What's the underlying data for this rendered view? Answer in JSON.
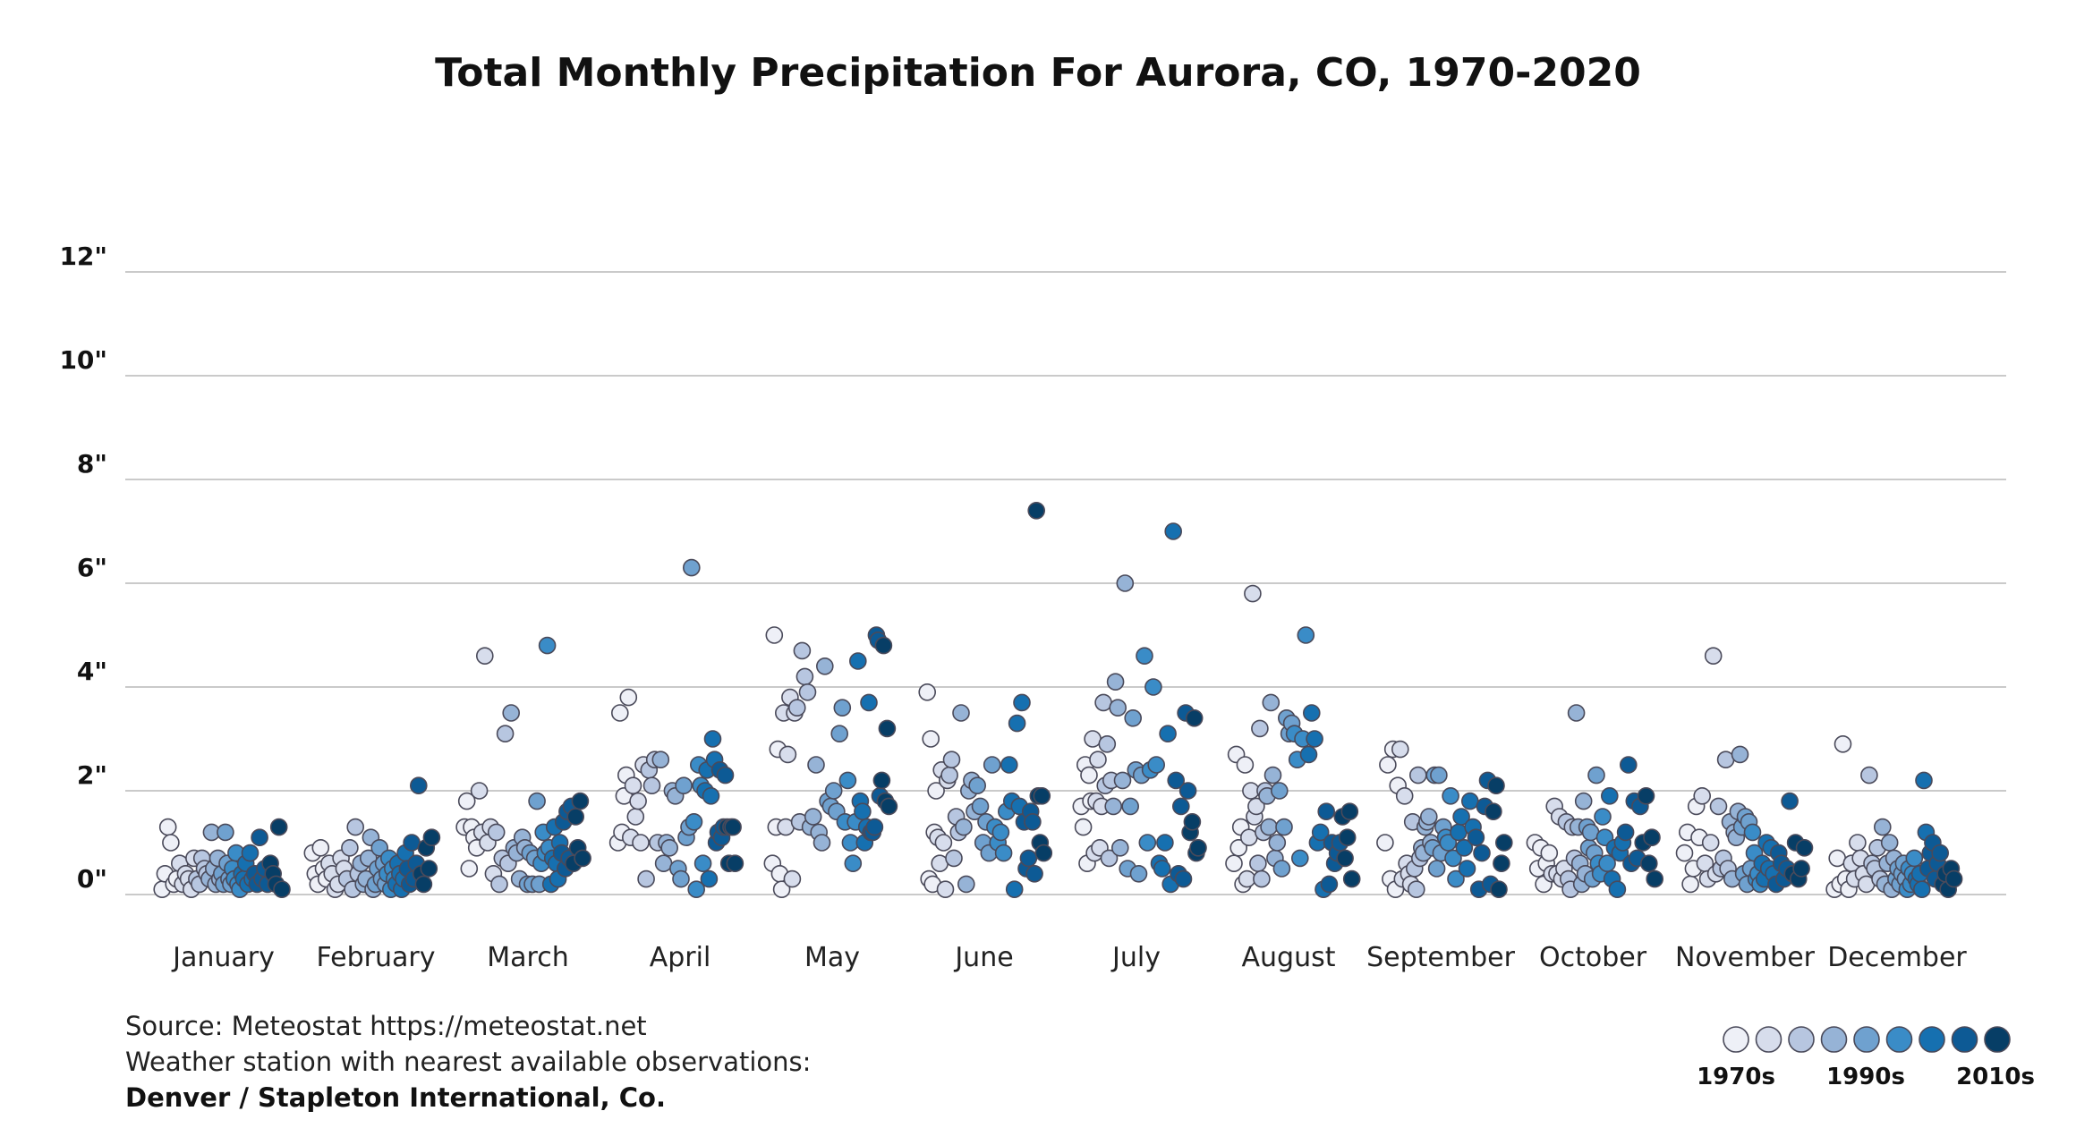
{
  "chart_data": {
    "type": "scatter",
    "title": "Total Monthly Precipitation For Aurora, CO, 1970-2020",
    "xlabel": "",
    "ylabel": "",
    "ylim": [
      0,
      14
    ],
    "yticks": [
      0,
      2,
      4,
      6,
      8,
      10,
      12
    ],
    "ytick_labels": [
      "0\"",
      "2\"",
      "4\"",
      "6\"",
      "8\"",
      "10\"",
      "12\""
    ],
    "categories": [
      "January",
      "February",
      "March",
      "April",
      "May",
      "June",
      "July",
      "August",
      "September",
      "October",
      "November",
      "December"
    ],
    "decade_colors": [
      "#eef0f7",
      "#d7ddec",
      "#b7c6e0",
      "#96b3d6",
      "#6fa1cf",
      "#3a8cc7",
      "#1670b0",
      "#0d5a95",
      "#073e66"
    ],
    "series": [
      {
        "name": "January",
        "values": [
          0.1,
          0.4,
          1.3,
          1.0,
          0.2,
          0.3,
          0.6,
          0.2,
          0.4,
          0.3,
          0.1,
          0.7,
          0.3,
          0.2,
          0.7,
          0.5,
          0.4,
          0.3,
          1.2,
          0.5,
          0.2,
          0.7,
          0.3,
          0.4,
          0.2,
          1.2,
          0.6,
          0.3,
          0.2,
          0.5,
          0.3,
          0.8,
          0.2,
          0.1,
          0.4,
          0.3,
          0.6,
          0.2,
          0.8,
          0.3,
          0.4,
          0.2,
          1.1,
          0.3,
          0.5,
          0.2,
          0.6,
          0.4,
          0.2,
          1.3,
          0.1
        ]
      },
      {
        "name": "February",
        "values": [
          0.8,
          0.4,
          0.2,
          0.9,
          0.5,
          0.3,
          0.6,
          0.4,
          0.1,
          0.2,
          0.7,
          0.5,
          0.3,
          0.9,
          0.1,
          1.3,
          0.4,
          0.6,
          0.2,
          0.3,
          0.7,
          1.1,
          0.1,
          0.2,
          0.5,
          0.9,
          0.3,
          0.6,
          0.2,
          0.4,
          0.7,
          0.1,
          0.5,
          0.3,
          0.2,
          0.6,
          0.4,
          0.1,
          0.3,
          0.8,
          0.5,
          0.2,
          1.0,
          0.3,
          0.6,
          2.1,
          0.4,
          0.2,
          0.9,
          0.5,
          1.1
        ]
      },
      {
        "name": "March",
        "values": [
          1.3,
          1.8,
          0.5,
          1.3,
          1.1,
          0.9,
          2.0,
          1.2,
          4.6,
          1.0,
          1.3,
          0.4,
          1.2,
          0.2,
          0.7,
          3.1,
          0.6,
          3.5,
          0.9,
          0.8,
          0.3,
          1.1,
          0.9,
          0.2,
          0.8,
          0.2,
          0.7,
          1.8,
          0.2,
          0.6,
          1.2,
          0.8,
          4.8,
          0.9,
          0.2,
          0.7,
          1.3,
          0.6,
          0.3,
          1.0,
          0.8,
          1.4,
          0.5,
          1.6,
          0.7,
          1.7,
          0.6,
          1.5,
          0.9,
          1.8,
          0.7
        ]
      },
      {
        "name": "April",
        "values": [
          1.0,
          3.5,
          1.2,
          1.9,
          2.3,
          3.8,
          1.1,
          2.1,
          1.5,
          1.8,
          1.0,
          2.5,
          0.3,
          2.4,
          2.1,
          2.6,
          1.0,
          2.6,
          0.6,
          1.0,
          0.9,
          2.0,
          1.9,
          0.5,
          0.3,
          2.1,
          1.1,
          1.3,
          6.3,
          1.4,
          0.1,
          2.5,
          2.1,
          0.6,
          2.0,
          2.4,
          0.3,
          1.9,
          3.0,
          2.6,
          1.0,
          1.2,
          2.4,
          1.1,
          1.3,
          2.3,
          1.3,
          0.6,
          1.3,
          1.3,
          0.6
        ]
      },
      {
        "name": "May",
        "values": [
          0.6,
          5.0,
          1.3,
          2.8,
          0.4,
          0.1,
          3.5,
          1.3,
          2.7,
          3.8,
          0.3,
          3.5,
          3.6,
          1.4,
          4.7,
          4.2,
          3.9,
          1.3,
          1.5,
          2.5,
          1.2,
          1.0,
          4.4,
          1.8,
          1.7,
          2.0,
          1.6,
          3.1,
          3.6,
          1.4,
          2.2,
          1.0,
          0.6,
          1.4,
          4.5,
          1.8,
          1.6,
          1.0,
          1.3,
          3.7,
          1.2,
          1.2,
          1.3,
          5.0,
          4.9,
          1.9,
          2.2,
          4.8,
          1.8,
          3.2,
          1.7
        ]
      },
      {
        "name": "June",
        "values": [
          3.9,
          0.3,
          3.0,
          0.2,
          1.2,
          2.0,
          1.1,
          0.6,
          2.4,
          1.0,
          0.1,
          2.2,
          2.3,
          2.6,
          0.7,
          1.5,
          1.2,
          3.5,
          1.3,
          0.2,
          2.0,
          2.2,
          1.6,
          2.1,
          1.7,
          1.0,
          1.4,
          0.8,
          2.5,
          1.3,
          1.0,
          1.2,
          0.8,
          1.6,
          2.5,
          1.8,
          0.1,
          3.3,
          1.7,
          3.7,
          1.4,
          0.5,
          0.7,
          1.6,
          1.4,
          0.4,
          7.4,
          1.9,
          1.0,
          1.9,
          0.8
        ]
      },
      {
        "name": "July",
        "values": [
          1.7,
          1.3,
          2.5,
          0.6,
          2.3,
          1.8,
          3.0,
          0.8,
          1.8,
          2.6,
          0.9,
          1.7,
          3.7,
          2.1,
          2.9,
          0.7,
          2.2,
          1.7,
          4.1,
          3.6,
          0.9,
          2.2,
          6.0,
          0.5,
          1.7,
          3.4,
          2.4,
          0.4,
          2.3,
          4.6,
          1.0,
          2.4,
          4.0,
          2.5,
          0.6,
          0.5,
          1.0,
          3.1,
          0.2,
          7.0,
          2.2,
          0.4,
          1.7,
          0.3,
          3.5,
          2.0,
          1.2,
          1.4,
          3.4,
          0.8,
          0.9
        ]
      },
      {
        "name": "August",
        "values": [
          0.6,
          2.7,
          0.9,
          1.3,
          0.2,
          2.5,
          0.3,
          1.1,
          2.0,
          5.8,
          1.5,
          1.7,
          0.6,
          3.2,
          0.3,
          1.2,
          2.0,
          1.9,
          1.3,
          3.7,
          2.3,
          0.7,
          1.0,
          2.0,
          0.5,
          1.3,
          3.4,
          3.1,
          3.3,
          3.1,
          2.6,
          0.7,
          3.0,
          5.0,
          2.7,
          3.5,
          3.0,
          1.0,
          1.2,
          0.1,
          1.6,
          0.2,
          1.0,
          0.6,
          0.8,
          1.0,
          1.5,
          0.7,
          1.1,
          1.6,
          0.3
        ]
      },
      {
        "name": "September",
        "values": [
          1.0,
          2.5,
          0.3,
          2.8,
          0.1,
          2.1,
          2.8,
          0.3,
          1.9,
          0.6,
          0.4,
          0.2,
          1.4,
          0.5,
          0.1,
          2.3,
          0.7,
          0.9,
          0.8,
          1.3,
          1.4,
          1.5,
          1.0,
          0.9,
          2.3,
          0.5,
          2.3,
          0.8,
          1.3,
          1.1,
          1.0,
          1.9,
          0.7,
          0.3,
          1.2,
          1.5,
          0.9,
          0.5,
          1.8,
          1.3,
          1.1,
          0.1,
          0.8,
          1.7,
          2.2,
          0.2,
          1.6,
          2.1,
          0.1,
          0.6,
          1.0
        ]
      },
      {
        "name": "October",
        "values": [
          1.0,
          0.5,
          0.9,
          0.2,
          0.6,
          0.8,
          0.4,
          1.7,
          0.4,
          1.5,
          0.3,
          0.5,
          1.4,
          0.3,
          0.1,
          1.3,
          0.7,
          3.5,
          1.3,
          0.6,
          0.2,
          1.8,
          0.4,
          1.3,
          0.9,
          1.2,
          0.3,
          0.8,
          2.3,
          0.6,
          0.4,
          1.5,
          1.1,
          0.6,
          1.9,
          0.3,
          0.9,
          0.1,
          0.8,
          1.0,
          1.2,
          2.5,
          0.6,
          1.8,
          0.7,
          1.7,
          1.0,
          1.9,
          0.6,
          1.1,
          0.3
        ]
      },
      {
        "name": "November",
        "values": [
          0.8,
          1.2,
          0.2,
          0.5,
          1.7,
          1.1,
          1.9,
          0.6,
          0.3,
          1.0,
          4.6,
          0.4,
          1.7,
          0.5,
          0.7,
          2.6,
          0.5,
          1.4,
          0.3,
          1.2,
          1.1,
          1.6,
          2.7,
          1.3,
          0.4,
          1.5,
          0.2,
          1.4,
          0.5,
          1.2,
          0.8,
          0.3,
          0.4,
          0.2,
          0.6,
          0.3,
          1.0,
          0.5,
          0.9,
          0.4,
          0.2,
          0.8,
          0.6,
          0.3,
          0.5,
          1.8,
          0.4,
          1.0,
          0.3,
          0.5,
          0.9
        ]
      },
      {
        "name": "December",
        "values": [
          0.1,
          0.7,
          0.2,
          2.9,
          0.3,
          0.1,
          0.6,
          0.3,
          1.0,
          0.7,
          0.4,
          0.2,
          2.3,
          0.6,
          0.5,
          0.9,
          0.3,
          1.3,
          0.2,
          0.6,
          1.0,
          0.1,
          0.7,
          0.3,
          0.5,
          0.2,
          0.4,
          0.6,
          0.3,
          0.1,
          0.5,
          0.2,
          0.4,
          0.7,
          0.3,
          0.2,
          0.4,
          0.1,
          2.2,
          1.2,
          0.5,
          0.8,
          1.0,
          0.3,
          0.6,
          0.8,
          0.2,
          0.4,
          0.1,
          0.5,
          0.3
        ]
      }
    ]
  },
  "source": {
    "line1": "Source: Meteostat https://meteostat.net",
    "line2": "Weather station with nearest available observations:",
    "line3": "Denver / Stapleton International, Co."
  },
  "legend": {
    "labels": [
      "1970s",
      "1990s",
      "2010s"
    ]
  }
}
